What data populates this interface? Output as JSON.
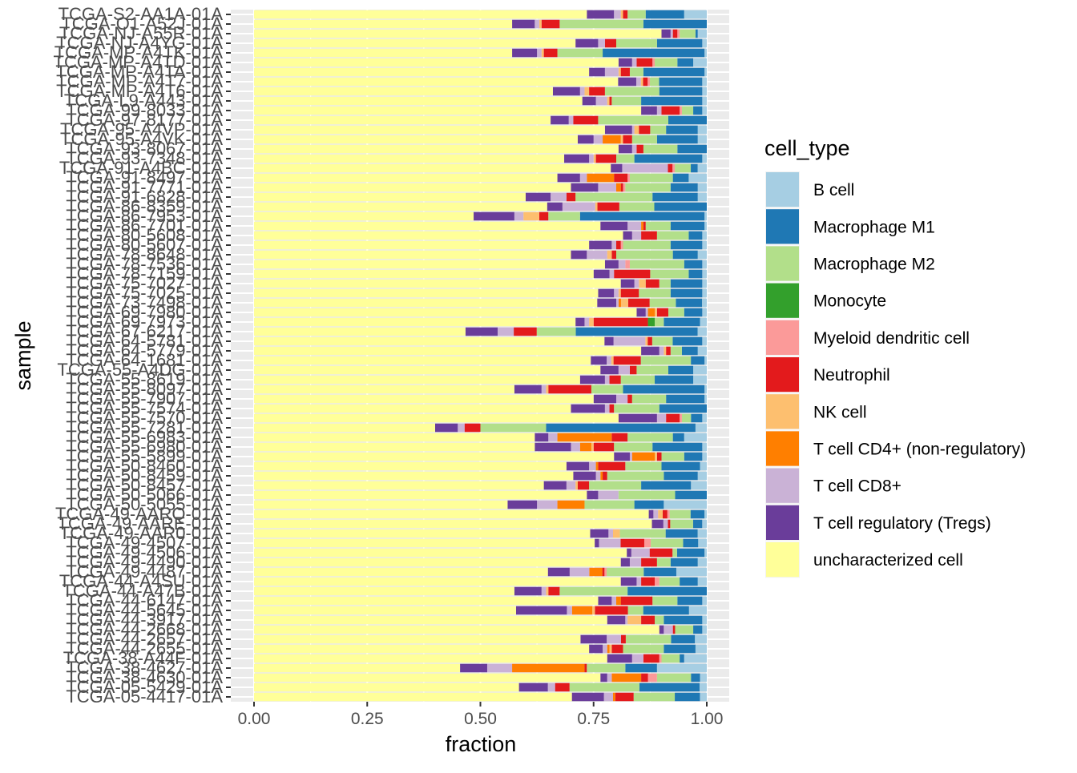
{
  "chart_data": {
    "type": "bar",
    "orientation": "horizontal",
    "stacked": true,
    "xlabel": "fraction",
    "ylabel": "sample",
    "xlim": [
      0,
      1
    ],
    "xticks": [
      "0.00",
      "0.25",
      "0.50",
      "0.75",
      "1.00"
    ],
    "xtick_values": [
      0,
      0.25,
      0.5,
      0.75,
      1
    ],
    "grid": true,
    "legend": {
      "title": "cell_type",
      "position": "right"
    },
    "cell_types": [
      {
        "name": "B cell",
        "color": "#a6cee3"
      },
      {
        "name": "Macrophage M1",
        "color": "#1f78b4"
      },
      {
        "name": "Macrophage M2",
        "color": "#b2df8a"
      },
      {
        "name": "Monocyte",
        "color": "#33a02c"
      },
      {
        "name": "Myeloid dendritic cell",
        "color": "#fb9a99"
      },
      {
        "name": "Neutrophil",
        "color": "#e31a1c"
      },
      {
        "name": "NK cell",
        "color": "#fdbf6f"
      },
      {
        "name": "T cell CD4+ (non-regulatory)",
        "color": "#ff7f00"
      },
      {
        "name": "T cell CD8+",
        "color": "#cab2d6"
      },
      {
        "name": "T cell regulatory (Tregs)",
        "color": "#6a3d9a"
      },
      {
        "name": "uncharacterized cell",
        "color": "#ffff99"
      }
    ],
    "stack_order_from_left": [
      "uncharacterized cell",
      "T cell regulatory (Tregs)",
      "T cell CD8+",
      "T cell CD4+ (non-regulatory)",
      "NK cell",
      "Neutrophil",
      "Myeloid dendritic cell",
      "Monocyte",
      "Macrophage M2",
      "Macrophage M1",
      "B cell"
    ],
    "samples": [
      {
        "label": "TCGA-S2-AA1A-01A",
        "values": [
          0.05,
          0.085,
          0.04,
          0,
          0,
          0.01,
          0.005,
          0,
          0.015,
          0.06,
          0.735
        ]
      },
      {
        "label": "TCGA-O1-A52J-01A",
        "values": [
          0,
          0.14,
          0.185,
          0,
          0,
          0.04,
          0.005,
          0,
          0.01,
          0.05,
          0.57
        ]
      },
      {
        "label": "TCGA-NJ-A55R-01A",
        "values": [
          0.02,
          0.005,
          0.035,
          0,
          0.005,
          0.01,
          0,
          0,
          0.005,
          0.02,
          0.9
        ]
      },
      {
        "label": "TCGA-NJ-A4YG-01A",
        "values": [
          0.01,
          0.1,
          0.09,
          0,
          0,
          0.025,
          0,
          0,
          0.015,
          0.05,
          0.71
        ]
      },
      {
        "label": "TCGA-MP-A4TK-01A",
        "values": [
          0.005,
          0.225,
          0.1,
          0,
          0,
          0.03,
          0.005,
          0,
          0.01,
          0.055,
          0.57
        ]
      },
      {
        "label": "TCGA-MP-A4TD-01A",
        "values": [
          0.03,
          0.035,
          0.05,
          0,
          0.005,
          0.035,
          0,
          0,
          0.01,
          0.03,
          0.805
        ]
      },
      {
        "label": "TCGA-MP-A4TA-01A",
        "values": [
          0.005,
          0.135,
          0.03,
          0,
          0,
          0.02,
          0.005,
          0,
          0.03,
          0.035,
          0.74
        ]
      },
      {
        "label": "TCGA-MP-A4T7-01A",
        "values": [
          0.01,
          0.095,
          0.02,
          0,
          0.005,
          0.01,
          0.005,
          0,
          0.01,
          0.04,
          0.8
        ]
      },
      {
        "label": "TCGA-MP-A4T6-01A",
        "values": [
          0.01,
          0.095,
          0.12,
          0,
          0,
          0.035,
          0.01,
          0,
          0.01,
          0.06,
          0.66
        ]
      },
      {
        "label": "TCGA-L9-A443-01A",
        "values": [
          0.01,
          0.135,
          0.065,
          0,
          0,
          0.005,
          0.005,
          0,
          0.025,
          0.03,
          0.725
        ]
      },
      {
        "label": "TCGA-99-8033-01A",
        "values": [
          0.01,
          0.02,
          0.025,
          0,
          0.005,
          0.04,
          0,
          0,
          0.01,
          0.035,
          0.855
        ]
      },
      {
        "label": "TCGA-97-8177-01A",
        "values": [
          0,
          0.085,
          0.155,
          0,
          0,
          0.055,
          0,
          0,
          0.01,
          0.04,
          0.655
        ]
      },
      {
        "label": "TCGA-95-A4VP-01A",
        "values": [
          0.02,
          0.07,
          0.035,
          0,
          0,
          0.025,
          0.01,
          0,
          0.005,
          0.06,
          0.775
        ]
      },
      {
        "label": "TCGA-95-A4VK-01A",
        "values": [
          0.02,
          0.09,
          0.055,
          0,
          0,
          0.02,
          0.005,
          0.04,
          0.02,
          0.035,
          0.715
        ]
      },
      {
        "label": "TCGA-93-8067-01A",
        "values": [
          0,
          0.065,
          0.075,
          0,
          0,
          0.015,
          0,
          0,
          0.01,
          0.03,
          0.805
        ]
      },
      {
        "label": "TCGA-93-7348-01A",
        "values": [
          0.01,
          0.15,
          0.04,
          0,
          0,
          0.045,
          0.005,
          0,
          0.01,
          0.055,
          0.685
        ]
      },
      {
        "label": "TCGA-91-A4BC-01A",
        "values": [
          0.02,
          0.015,
          0.035,
          0,
          0.005,
          0.01,
          0,
          0,
          0.1,
          0.025,
          0.78
        ]
      },
      {
        "label": "TCGA-91-8497-01A",
        "values": [
          0.04,
          0.035,
          0.095,
          0,
          0.005,
          0.03,
          0,
          0.06,
          0.015,
          0.05,
          0.67
        ]
      },
      {
        "label": "TCGA-91-7771-01A",
        "values": [
          0.02,
          0.06,
          0.1,
          0,
          0.005,
          0.005,
          0,
          0.01,
          0.04,
          0.06,
          0.7
        ]
      },
      {
        "label": "TCGA-91-6828-01A",
        "values": [
          0.02,
          0.1,
          0.17,
          0,
          0,
          0.02,
          0,
          0,
          0.035,
          0.055,
          0.6
        ]
      },
      {
        "label": "TCGA-86-8359-01A",
        "values": [
          0,
          0.12,
          0.08,
          0,
          0,
          0.05,
          0.005,
          0,
          0.075,
          0.035,
          0.67
        ]
      },
      {
        "label": "TCGA-86-7953-01A",
        "values": [
          0.005,
          0.275,
          0.07,
          0,
          0,
          0.02,
          0.035,
          0,
          0.02,
          0.09,
          0.485
        ]
      },
      {
        "label": "TCGA-86-7701-01A",
        "values": [
          0.005,
          0.075,
          0.055,
          0,
          0,
          0.005,
          0,
          0.005,
          0.03,
          0.06,
          0.765
        ]
      },
      {
        "label": "TCGA-80-5608-01A",
        "values": [
          0.01,
          0.03,
          0.07,
          0,
          0,
          0.035,
          0,
          0,
          0.02,
          0.02,
          0.815
        ]
      },
      {
        "label": "TCGA-80-5607-01A",
        "values": [
          0.01,
          0.07,
          0.105,
          0,
          0.005,
          0.01,
          0,
          0,
          0.01,
          0.05,
          0.74
        ]
      },
      {
        "label": "TCGA-78-8648-01A",
        "values": [
          0.02,
          0.055,
          0.125,
          0,
          0,
          0.01,
          0.01,
          0,
          0.045,
          0.035,
          0.7
        ]
      },
      {
        "label": "TCGA-78-7536-01A",
        "values": [
          0.01,
          0.04,
          0.12,
          0,
          0.01,
          0,
          0,
          0,
          0.015,
          0.03,
          0.775
        ]
      },
      {
        "label": "TCGA-78-7159-01A",
        "values": [
          0.01,
          0.03,
          0.085,
          0,
          0,
          0.08,
          0,
          0,
          0.01,
          0.035,
          0.75
        ]
      },
      {
        "label": "TCGA-75-7027-01A",
        "values": [
          0.01,
          0.07,
          0.025,
          0,
          0,
          0.03,
          0.015,
          0,
          0.01,
          0.03,
          0.81
        ]
      },
      {
        "label": "TCGA-75-7025-01A",
        "values": [
          0.01,
          0.07,
          0.07,
          0,
          0,
          0.04,
          0.005,
          0,
          0.01,
          0.035,
          0.76
        ]
      },
      {
        "label": "TCGA-73-7498-01A",
        "values": [
          0.01,
          0.055,
          0.055,
          0,
          0,
          0.045,
          0.015,
          0.005,
          0.005,
          0.04,
          0.72
        ]
      },
      {
        "label": "TCGA-69-7980-01A",
        "values": [
          0.01,
          0.04,
          0.035,
          0,
          0,
          0.025,
          0.005,
          0.015,
          0.005,
          0.02,
          0.845
        ]
      },
      {
        "label": "TCGA-69-7973-01A",
        "values": [
          0.015,
          0.08,
          0.02,
          0.015,
          0,
          0.12,
          0.01,
          0,
          0.01,
          0.02,
          0.71
        ]
      },
      {
        "label": "TCGA-67-6217-01A",
        "values": [
          0.02,
          0.265,
          0.085,
          0,
          0,
          0.05,
          0,
          0,
          0.035,
          0.07,
          0.46
        ]
      },
      {
        "label": "TCGA-64-5781-01A",
        "values": [
          0.01,
          0.065,
          0.045,
          0,
          0,
          0.01,
          0.005,
          0,
          0.07,
          0.02,
          0.77
        ]
      },
      {
        "label": "TCGA-64-5779-01A",
        "values": [
          0.02,
          0.035,
          0.025,
          0,
          0,
          0.01,
          0.005,
          0,
          0.01,
          0.04,
          0.855
        ]
      },
      {
        "label": "TCGA-64-1681-01A",
        "values": [
          0.005,
          0.03,
          0.11,
          0,
          0,
          0.06,
          0.005,
          0,
          0.01,
          0.035,
          0.74
        ]
      },
      {
        "label": "TCGA-55-A4DG-01A",
        "values": [
          0.03,
          0.055,
          0.07,
          0,
          0,
          0.015,
          0,
          0,
          0.025,
          0.04,
          0.765
        ]
      },
      {
        "label": "TCGA-55-8619-01A",
        "values": [
          0.03,
          0.085,
          0.075,
          0,
          0,
          0.025,
          0,
          0,
          0.01,
          0.055,
          0.72
        ]
      },
      {
        "label": "TCGA-55-8097-01A",
        "values": [
          0.005,
          0.18,
          0.07,
          0,
          0,
          0.095,
          0.005,
          0,
          0.01,
          0.06,
          0.575
        ]
      },
      {
        "label": "TCGA-55-7907-01A",
        "values": [
          0.005,
          0.085,
          0.075,
          0,
          0,
          0.01,
          0,
          0,
          0.025,
          0.05,
          0.75
        ]
      },
      {
        "label": "TCGA-55-7574-01A",
        "values": [
          0,
          0.105,
          0.1,
          0,
          0,
          0.01,
          0,
          0,
          0.01,
          0.075,
          0.7
        ]
      },
      {
        "label": "TCGA-55-7570-01A",
        "values": [
          0.01,
          0.025,
          0.02,
          0,
          0.005,
          0.03,
          0,
          0,
          0.02,
          0.085,
          0.805
        ]
      },
      {
        "label": "TCGA-55-7281-01A",
        "values": [
          0.025,
          0.33,
          0.145,
          0,
          0,
          0.035,
          0,
          0,
          0.015,
          0.05,
          0.4
        ]
      },
      {
        "label": "TCGA-55-6983-01A",
        "values": [
          0.05,
          0.025,
          0.1,
          0,
          0,
          0.035,
          0,
          0.12,
          0.02,
          0.03,
          0.62
        ]
      },
      {
        "label": "TCGA-55-6980-01A",
        "values": [
          0.01,
          0.11,
          0.085,
          0,
          0,
          0.045,
          0.005,
          0.025,
          0.02,
          0.08,
          0.62
        ]
      },
      {
        "label": "TCGA-55-5899-01A",
        "values": [
          0.01,
          0.04,
          0.05,
          0,
          0,
          0.01,
          0.005,
          0.05,
          0.005,
          0.035,
          0.795
        ]
      },
      {
        "label": "TCGA-50-8460-01A",
        "values": [
          0.015,
          0.085,
          0.08,
          0,
          0,
          0.06,
          0,
          0.005,
          0.015,
          0.05,
          0.69
        ]
      },
      {
        "label": "TCGA-50-8459-01A",
        "values": [
          0.02,
          0.075,
          0.125,
          0,
          0,
          0.01,
          0,
          0.005,
          0.01,
          0.05,
          0.705
        ]
      },
      {
        "label": "TCGA-50-8457-01A",
        "values": [
          0.035,
          0.11,
          0.115,
          0,
          0,
          0.025,
          0.005,
          0,
          0.02,
          0.05,
          0.64
        ]
      },
      {
        "label": "TCGA-50-5066-01A",
        "values": [
          0,
          0.07,
          0.125,
          0,
          0,
          0,
          0,
          0,
          0.045,
          0.025,
          0.735
        ]
      },
      {
        "label": "TCGA-50-5055-01A",
        "values": [
          0.095,
          0.065,
          0.11,
          0,
          0,
          0,
          0,
          0.06,
          0.045,
          0.065,
          0.56
        ]
      },
      {
        "label": "TCGA-49-AARQ-01A",
        "values": [
          0.005,
          0.03,
          0.045,
          0,
          0.005,
          0.01,
          0.01,
          0,
          0.01,
          0.01,
          0.85
        ]
      },
      {
        "label": "TCGA-49-AARE-01A",
        "values": [
          0.01,
          0.02,
          0.05,
          0,
          0,
          0.005,
          0,
          0,
          0.01,
          0.025,
          0.87
        ]
      },
      {
        "label": "TCGA-49-AAR0-01A",
        "values": [
          0.02,
          0.07,
          0.1,
          0,
          0,
          0,
          0.015,
          0,
          0.01,
          0.04,
          0.735
        ]
      },
      {
        "label": "TCGA-49-4507-01A",
        "values": [
          0.02,
          0.035,
          0.075,
          0,
          0.015,
          0.055,
          0,
          0,
          0.05,
          0.01,
          0.79
        ]
      },
      {
        "label": "TCGA-49-4506-01A",
        "values": [
          0.005,
          0.06,
          0.01,
          0,
          0,
          0.05,
          0,
          0,
          0.04,
          0.01,
          0.815
        ]
      },
      {
        "label": "TCGA-49-4490-01A",
        "values": [
          0.02,
          0.06,
          0.03,
          0,
          0,
          0.035,
          0,
          0,
          0.025,
          0.02,
          0.81
        ]
      },
      {
        "label": "TCGA-49-4487-01A",
        "values": [
          0.07,
          0.075,
          0.085,
          0,
          0.005,
          0.005,
          0,
          0.03,
          0.045,
          0.05,
          0.675
        ]
      },
      {
        "label": "TCGA-44-A4SU-01A",
        "values": [
          0.02,
          0.04,
          0.045,
          0,
          0.01,
          0.03,
          0,
          0,
          0.01,
          0.035,
          0.81
        ]
      },
      {
        "label": "TCGA-44-A47B-01A",
        "values": [
          0,
          0.175,
          0.15,
          0,
          0,
          0.025,
          0.005,
          0,
          0.01,
          0.06,
          0.575
        ]
      },
      {
        "label": "TCGA-44-6147-01A",
        "values": [
          0.01,
          0.055,
          0.055,
          0,
          0,
          0.07,
          0,
          0.01,
          0.01,
          0.03,
          0.76
        ]
      },
      {
        "label": "TCGA-44-5645-01A",
        "values": [
          0.035,
          0.09,
          0.03,
          0,
          0,
          0.065,
          0.005,
          0.04,
          0.01,
          0.1,
          0.515
        ]
      },
      {
        "label": "TCGA-44-3917-01A",
        "values": [
          0.01,
          0.085,
          0.02,
          0,
          0,
          0.03,
          0.03,
          0,
          0.005,
          0.04,
          0.78
        ]
      },
      {
        "label": "TCGA-44-2668-01A",
        "values": [
          0.01,
          0.02,
          0.04,
          0,
          0,
          0.005,
          0,
          0,
          0.02,
          0.01,
          0.895
        ]
      },
      {
        "label": "TCGA-44-2657-01A",
        "values": [
          0.025,
          0.05,
          0.095,
          0,
          0,
          0.01,
          0,
          0,
          0.03,
          0.055,
          0.685
        ]
      },
      {
        "label": "TCGA-44-2655-01A",
        "values": [
          0.025,
          0.07,
          0.09,
          0,
          0,
          0.025,
          0.005,
          0.005,
          0.01,
          0.03,
          0.74
        ]
      },
      {
        "label": "TCGA-38-A44F-01A",
        "values": [
          0.05,
          0.01,
          0.04,
          0,
          0.005,
          0.035,
          0,
          0,
          0.025,
          0.055,
          0.78
        ]
      },
      {
        "label": "TCGA-38-4627-01A",
        "values": [
          0.11,
          0.07,
          0.085,
          0,
          0,
          0.005,
          0,
          0.16,
          0.055,
          0.06,
          0.455
        ]
      },
      {
        "label": "TCGA-38-4630-01A",
        "values": [
          0.015,
          0.02,
          0.075,
          0,
          0.02,
          0.015,
          0,
          0.065,
          0.01,
          0.015,
          0.765
        ]
      },
      {
        "label": "TCGA-05-5429-01A",
        "values": [
          0.015,
          0.125,
          0.145,
          0,
          0,
          0.03,
          0,
          0,
          0.015,
          0.06,
          0.55
        ]
      },
      {
        "label": "TCGA-05-4417-01A",
        "values": [
          0.015,
          0.055,
          0.09,
          0,
          0,
          0.04,
          0,
          0.005,
          0.02,
          0.07,
          0.695
        ]
      }
    ]
  }
}
